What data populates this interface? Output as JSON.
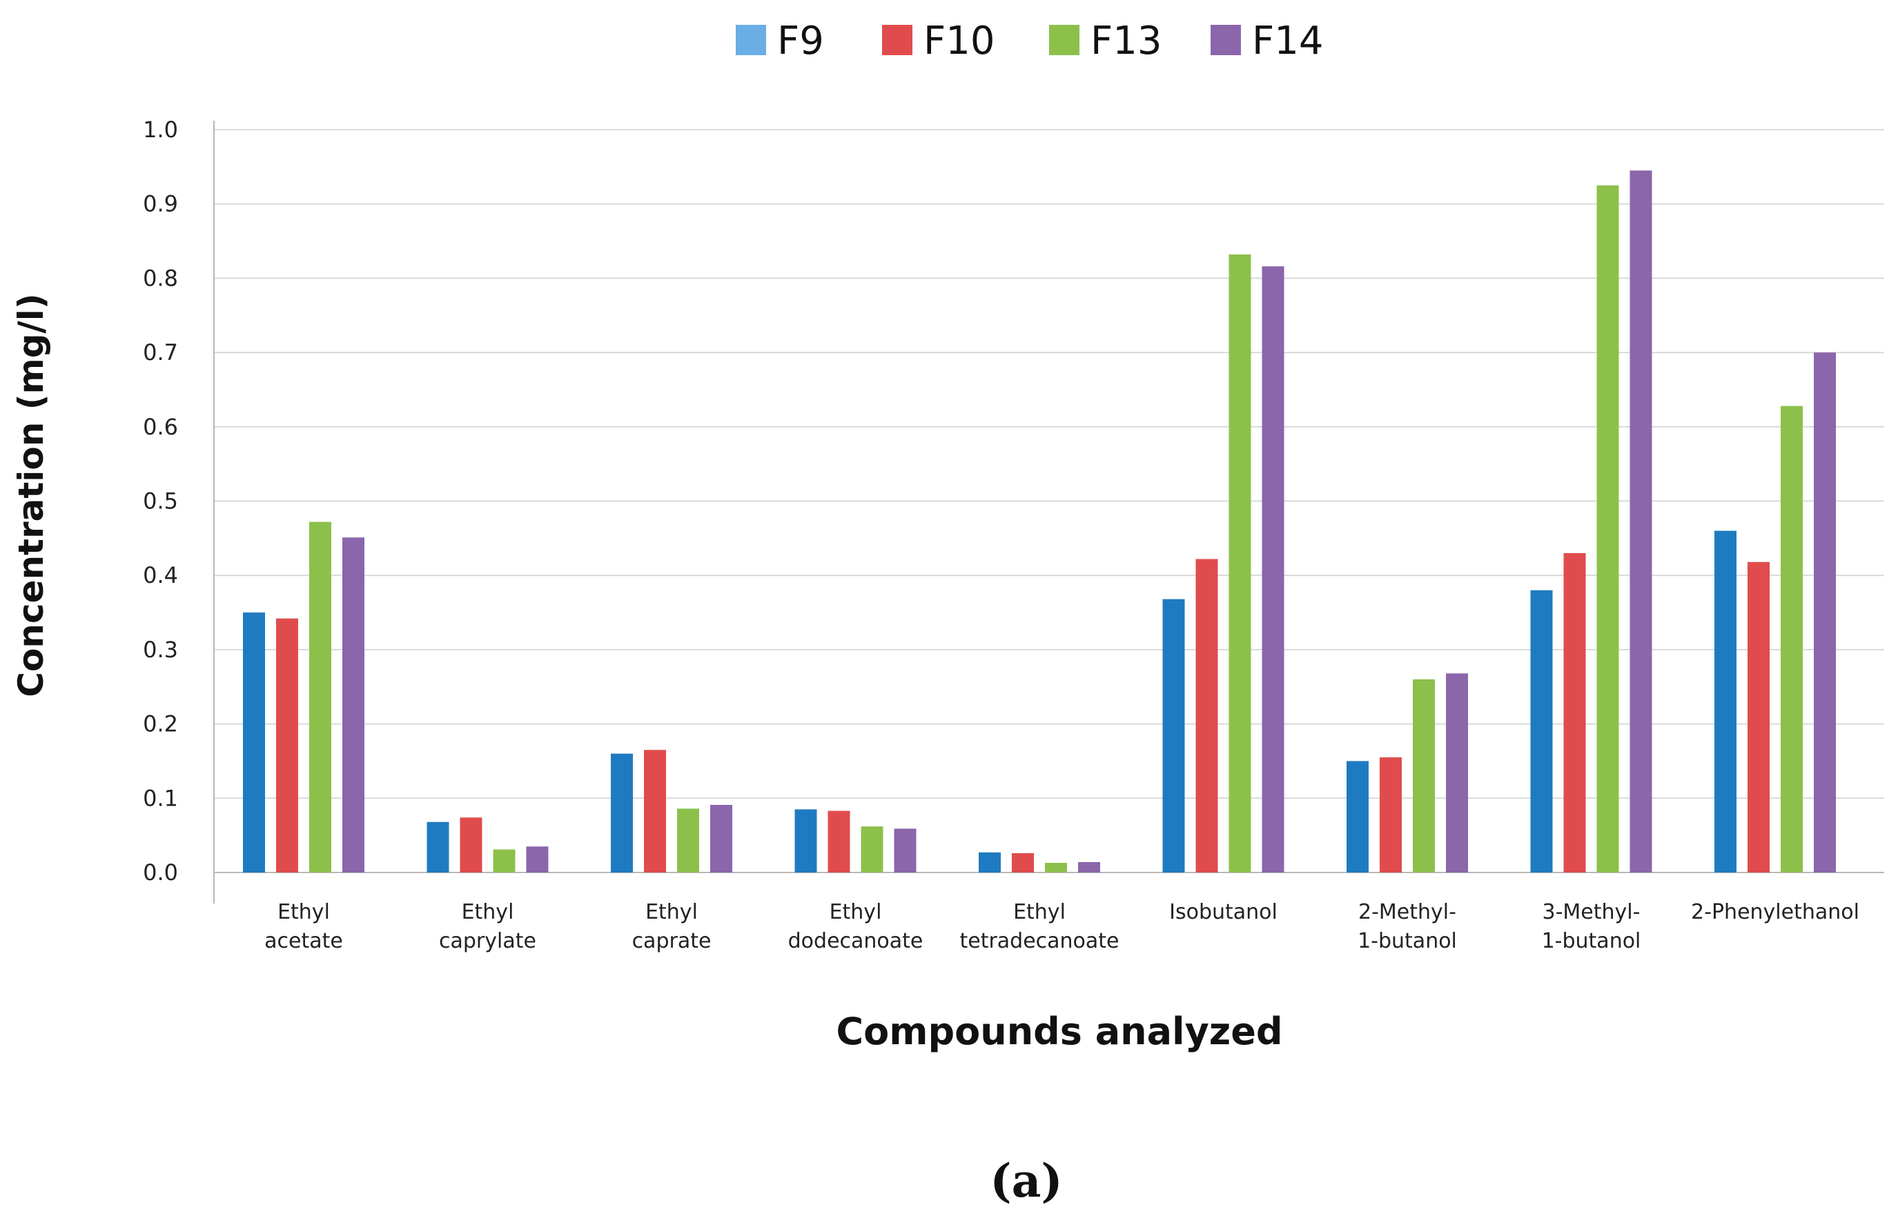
{
  "chart_data": {
    "type": "bar",
    "title": "",
    "xlabel": "Compounds analyzed",
    "ylabel": "Concentration (mg/l)",
    "ylim": [
      0,
      1.0
    ],
    "yticks": [
      "0.0",
      "0.1",
      "0.2",
      "0.3",
      "0.4",
      "0.5",
      "0.6",
      "0.7",
      "0.8",
      "0.9",
      "1.0"
    ],
    "grid": true,
    "legend_position": "top-center",
    "categories": [
      [
        "Ethyl",
        "acetate"
      ],
      [
        "Ethyl",
        "caprylate"
      ],
      [
        "Ethyl",
        "caprate"
      ],
      [
        "Ethyl",
        "dodecanoate"
      ],
      [
        "Ethyl",
        "tetradecanoate"
      ],
      [
        "Isobutanol"
      ],
      [
        "2-Methyl-",
        "1-butanol"
      ],
      [
        "3-Methyl-",
        "1-butanol"
      ],
      [
        "2-Phenylethanol"
      ]
    ],
    "series": [
      {
        "name": "F9",
        "color": "#1f7bc1",
        "legend_color": "#6aaee6",
        "values": [
          0.35,
          0.068,
          0.16,
          0.085,
          0.027,
          0.368,
          0.15,
          0.38,
          0.46
        ]
      },
      {
        "name": "F10",
        "color": "#e04c4d",
        "legend_color": "#e04c4d",
        "values": [
          0.342,
          0.074,
          0.165,
          0.083,
          0.026,
          0.422,
          0.155,
          0.43,
          0.418
        ]
      },
      {
        "name": "F13",
        "color": "#8cc04b",
        "legend_color": "#8cc04b",
        "values": [
          0.472,
          0.031,
          0.086,
          0.062,
          0.013,
          0.832,
          0.26,
          0.925,
          0.628
        ]
      },
      {
        "name": "F14",
        "color": "#8b66ab",
        "legend_color": "#8b66ab",
        "values": [
          0.451,
          0.035,
          0.091,
          0.059,
          0.014,
          0.816,
          0.268,
          0.945,
          0.7
        ]
      }
    ]
  },
  "caption": "(a)"
}
